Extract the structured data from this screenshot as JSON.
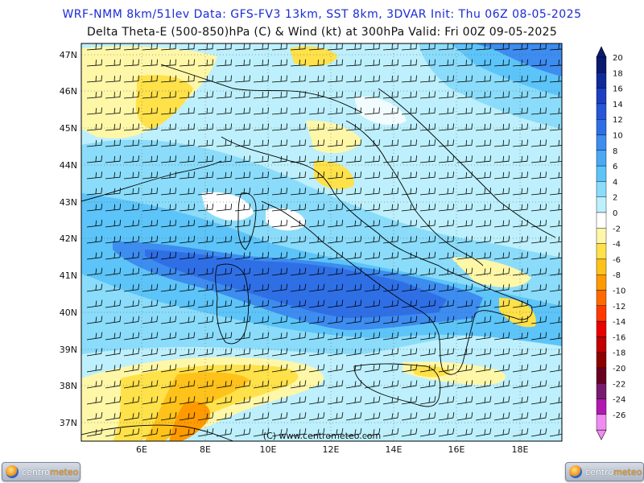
{
  "header": {
    "line1": "WRF-NMM 8km/51lev   Data: GFS-FV3 13km, SST 8km, 3DVAR   Init: Thu 06Z 08-05-2025",
    "line2": "Delta Theta-E (500-850)hPa (C) & Wind (kt) at 300hPa    Valid: Fri 00Z 09-05-2025"
  },
  "map": {
    "lat_labels": [
      "47N",
      "46N",
      "45N",
      "44N",
      "43N",
      "42N",
      "41N",
      "40N",
      "39N",
      "38N",
      "37N"
    ],
    "lon_labels": [
      "6E",
      "8E",
      "10E",
      "12E",
      "14E",
      "16E",
      "18E"
    ],
    "copyright": "(C) www.centrometeo.com"
  },
  "colorbar": {
    "labels": [
      "20",
      "18",
      "16",
      "14",
      "12",
      "10",
      "8",
      "6",
      "4",
      "2",
      "0",
      "-2",
      "-4",
      "-6",
      "-8",
      "-10",
      "-12",
      "-14",
      "-16",
      "-18",
      "-20",
      "-22",
      "-24",
      "-26"
    ],
    "colors": [
      "#0a1a6e",
      "#102a9a",
      "#1e3fc4",
      "#2656d8",
      "#2f6fe6",
      "#3d8cf0",
      "#4aa8f4",
      "#5cc4f8",
      "#8adcfa",
      "#bdf0fc",
      "#ffffff",
      "#fff7a8",
      "#ffe14a",
      "#ffc21a",
      "#ff9a00",
      "#ff6a00",
      "#ff3a00",
      "#e80000",
      "#c00000",
      "#8e0000",
      "#6a0020",
      "#7a1a6e",
      "#b01ab0",
      "#f08cf0"
    ]
  },
  "logos": {
    "left": {
      "part1": "centro",
      "part2": "meteo"
    },
    "right": {
      "part1": "centro",
      "part2": "meteo"
    }
  }
}
